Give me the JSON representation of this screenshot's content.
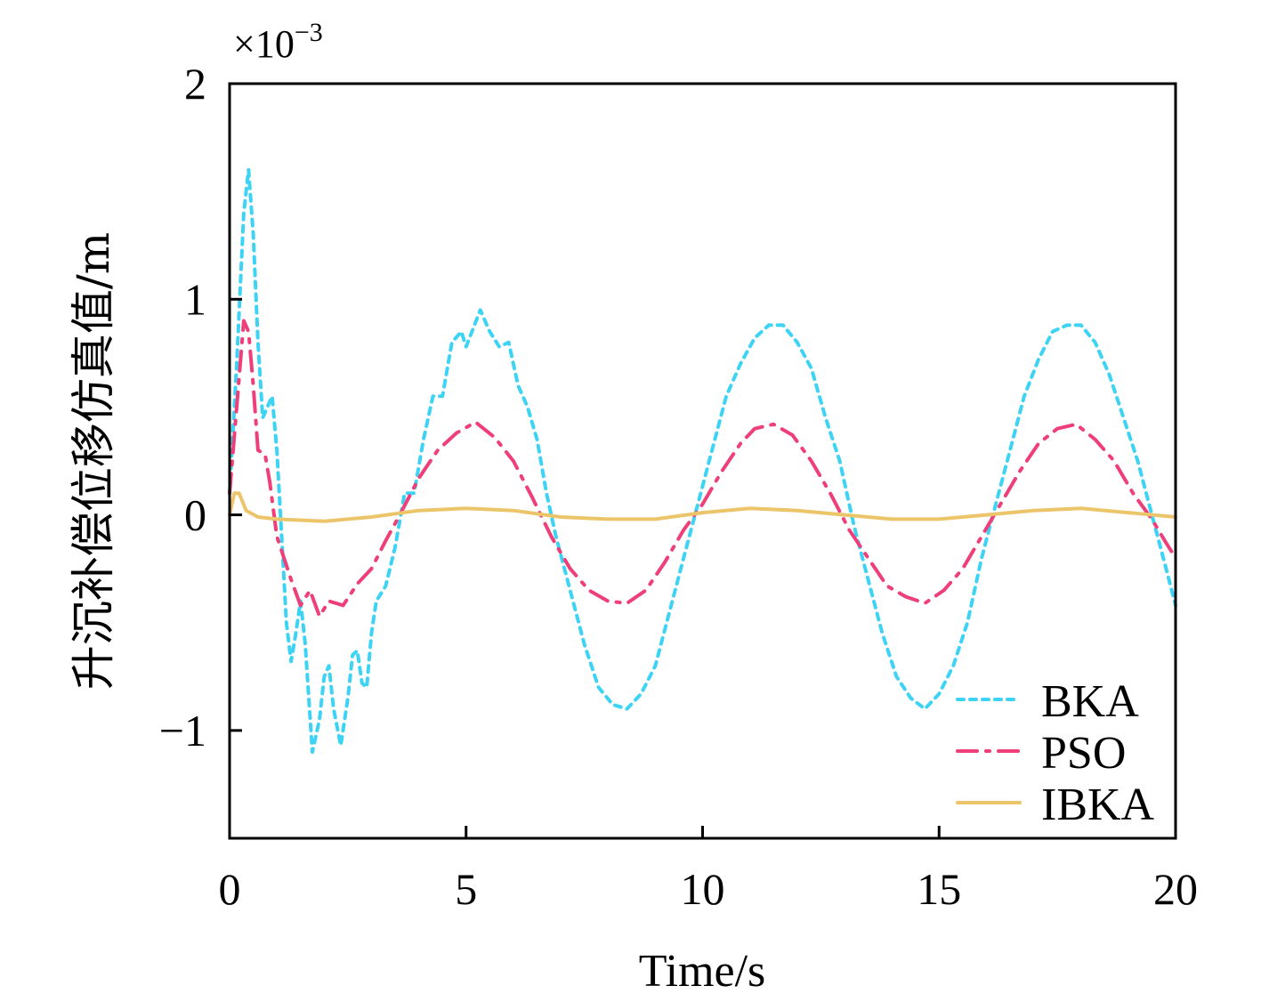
{
  "chart_data": {
    "type": "line",
    "xlabel": "Time/s",
    "ylabel": "升沉补偿位移仿真值/m",
    "y_multiplier_label": "×10",
    "y_multiplier_exponent": "−3",
    "xlim": [
      0,
      20
    ],
    "ylim": [
      -1.5,
      2
    ],
    "xticks": [
      0,
      5,
      10,
      15,
      20
    ],
    "xtick_labels": [
      "0",
      "5",
      "10",
      "15",
      "20"
    ],
    "yticks": [
      2,
      1,
      0,
      -1
    ],
    "ytick_labels": [
      "2",
      "1",
      "0",
      "−1"
    ],
    "grid": false,
    "legend_position": "bottom-right",
    "series": [
      {
        "name": "BKA",
        "color": "#3dd3f5",
        "style": "dotted",
        "x": [
          0,
          0.15,
          0.3,
          0.4,
          0.5,
          0.6,
          0.7,
          0.8,
          0.9,
          1.0,
          1.1,
          1.2,
          1.3,
          1.4,
          1.5,
          1.6,
          1.75,
          1.9,
          2.0,
          2.1,
          2.2,
          2.35,
          2.5,
          2.6,
          2.7,
          2.8,
          2.9,
          3.0,
          3.1,
          3.3,
          3.5,
          3.7,
          3.9,
          4.1,
          4.3,
          4.5,
          4.7,
          4.9,
          5.0,
          5.3,
          5.5,
          5.7,
          5.9,
          6.1,
          6.3,
          6.5,
          6.7,
          6.9,
          7.2,
          7.5,
          7.8,
          8.1,
          8.4,
          8.7,
          9.0,
          9.3,
          9.6,
          9.9,
          10.2,
          10.5,
          10.8,
          11.1,
          11.4,
          11.7,
          12.0,
          12.3,
          12.6,
          12.9,
          13.2,
          13.5,
          13.8,
          14.1,
          14.4,
          14.7,
          15.0,
          15.3,
          15.6,
          15.9,
          16.2,
          16.5,
          16.8,
          17.1,
          17.4,
          17.7,
          18.0,
          18.3,
          18.6,
          18.9,
          19.2,
          19.5,
          19.8,
          20
        ],
        "y": [
          0.1,
          0.7,
          1.4,
          1.6,
          1.3,
          0.8,
          0.45,
          0.5,
          0.55,
          0.3,
          -0.1,
          -0.5,
          -0.68,
          -0.55,
          -0.4,
          -0.6,
          -1.1,
          -0.95,
          -0.75,
          -0.7,
          -0.9,
          -1.07,
          -0.85,
          -0.65,
          -0.63,
          -0.78,
          -0.8,
          -0.55,
          -0.4,
          -0.33,
          -0.15,
          0.1,
          0.1,
          0.35,
          0.55,
          0.55,
          0.8,
          0.85,
          0.78,
          0.95,
          0.85,
          0.78,
          0.8,
          0.6,
          0.5,
          0.35,
          0.1,
          -0.1,
          -0.35,
          -0.6,
          -0.8,
          -0.88,
          -0.9,
          -0.83,
          -0.7,
          -0.45,
          -0.2,
          0.05,
          0.3,
          0.55,
          0.7,
          0.82,
          0.88,
          0.88,
          0.8,
          0.68,
          0.45,
          0.25,
          -0.05,
          -0.3,
          -0.55,
          -0.75,
          -0.85,
          -0.9,
          -0.83,
          -0.7,
          -0.5,
          -0.2,
          0.05,
          0.3,
          0.55,
          0.72,
          0.85,
          0.88,
          0.88,
          0.8,
          0.65,
          0.45,
          0.25,
          0.0,
          -0.25,
          -0.42
        ]
      },
      {
        "name": "PSO",
        "color": "#ee3f79",
        "style": "dashdot",
        "x": [
          0,
          0.15,
          0.3,
          0.4,
          0.5,
          0.6,
          0.75,
          0.85,
          1.0,
          1.15,
          1.3,
          1.5,
          1.7,
          1.9,
          2.1,
          2.4,
          2.7,
          3.0,
          3.3,
          3.6,
          4.0,
          4.4,
          4.8,
          5.2,
          5.6,
          6.0,
          6.4,
          6.8,
          7.2,
          7.6,
          8.0,
          8.4,
          8.8,
          9.2,
          9.6,
          10.0,
          10.4,
          10.8,
          11.1,
          11.5,
          11.9,
          12.3,
          12.7,
          13.1,
          13.5,
          13.9,
          14.3,
          14.7,
          15.1,
          15.5,
          15.9,
          16.3,
          16.7,
          17.1,
          17.5,
          17.9,
          18.3,
          18.7,
          19.1,
          19.5,
          19.8,
          20
        ],
        "y": [
          0.1,
          0.5,
          0.9,
          0.85,
          0.6,
          0.3,
          0.28,
          0.15,
          -0.1,
          -0.2,
          -0.3,
          -0.42,
          -0.35,
          -0.47,
          -0.4,
          -0.42,
          -0.32,
          -0.25,
          -0.12,
          0.0,
          0.17,
          0.3,
          0.38,
          0.43,
          0.36,
          0.25,
          0.08,
          -0.1,
          -0.25,
          -0.35,
          -0.4,
          -0.41,
          -0.35,
          -0.22,
          -0.07,
          0.05,
          0.2,
          0.33,
          0.4,
          0.42,
          0.37,
          0.25,
          0.1,
          -0.07,
          -0.2,
          -0.33,
          -0.38,
          -0.41,
          -0.35,
          -0.25,
          -0.1,
          0.05,
          0.2,
          0.33,
          0.4,
          0.42,
          0.35,
          0.25,
          0.1,
          -0.02,
          -0.13,
          -0.2
        ]
      },
      {
        "name": "IBKA",
        "color": "#ecc56a",
        "style": "solid",
        "x": [
          0,
          0.1,
          0.2,
          0.35,
          0.6,
          1,
          2,
          3,
          4,
          5,
          6,
          7,
          8,
          9,
          10,
          11,
          12,
          13,
          14,
          15,
          16,
          17,
          18,
          19,
          20
        ],
        "y": [
          0.0,
          0.1,
          0.1,
          0.02,
          -0.01,
          -0.02,
          -0.03,
          -0.01,
          0.02,
          0.03,
          0.02,
          -0.01,
          -0.02,
          -0.02,
          0.01,
          0.03,
          0.02,
          0.0,
          -0.02,
          -0.02,
          0.0,
          0.02,
          0.03,
          0.01,
          -0.01
        ]
      }
    ]
  }
}
